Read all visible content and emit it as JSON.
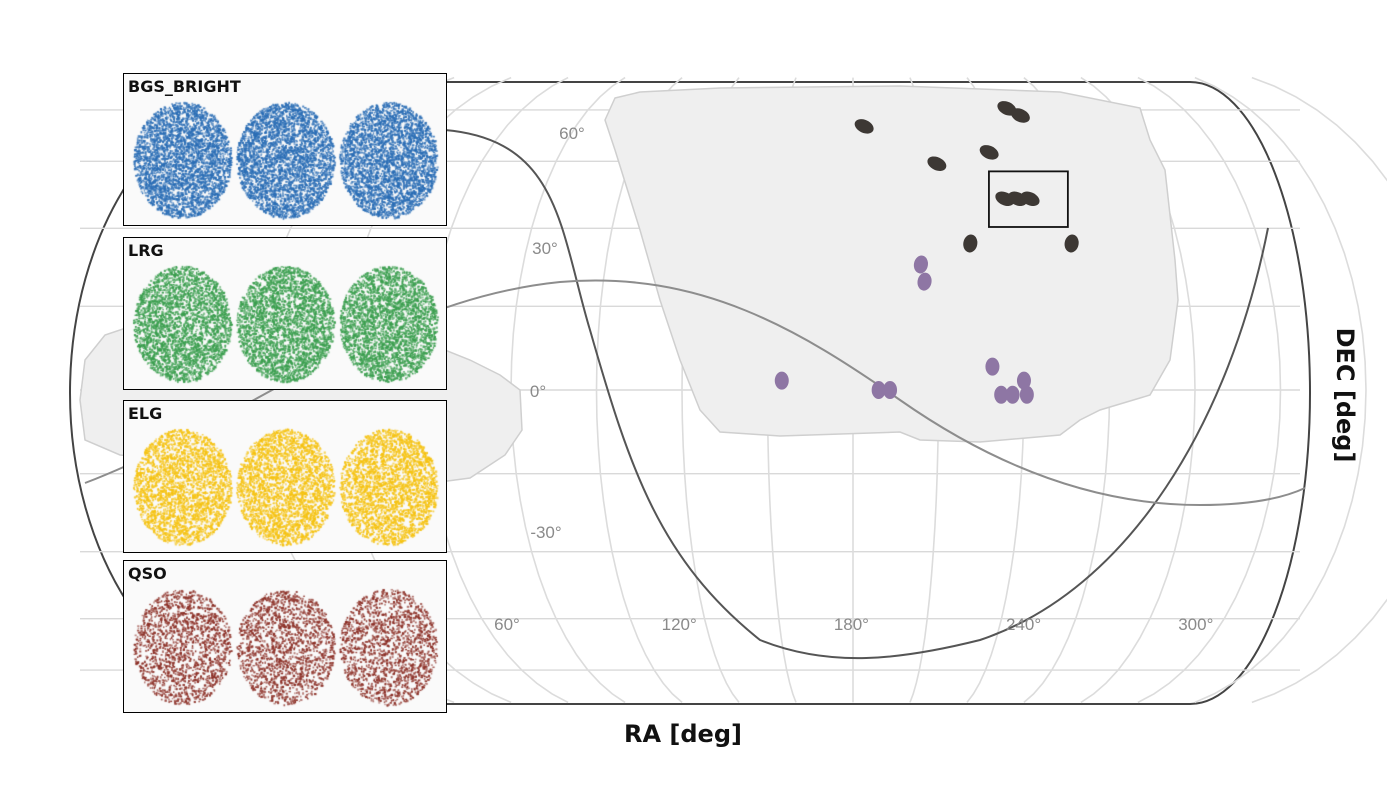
{
  "chart_data": {
    "type": "scatter",
    "projection": "equal-area sky map",
    "xlabel": "RA [deg]",
    "ylabel": "DEC [deg]",
    "ra_ticks": [
      {
        "value": 60,
        "label": "60°"
      },
      {
        "value": 120,
        "label": "120°"
      },
      {
        "value": 180,
        "label": "180°"
      },
      {
        "value": 240,
        "label": "240°"
      },
      {
        "value": 300,
        "label": "300°"
      }
    ],
    "dec_ticks": [
      {
        "value": 60,
        "label": "60°"
      },
      {
        "value": 30,
        "label": "30°"
      },
      {
        "value": 0,
        "label": "0°"
      },
      {
        "value": -30,
        "label": "-30°"
      }
    ],
    "grid": true,
    "footprint": "light grey survey footprint (north cap and equatorial stripe)",
    "curves": [
      "galactic plane",
      "ecliptic"
    ],
    "series": [
      {
        "color": "#3d3834",
        "points": [
          {
            "ra": 185,
            "dec": 63
          },
          {
            "ra": 215,
            "dec": 53
          },
          {
            "ra": 238,
            "dec": 56
          },
          {
            "ra": 252,
            "dec": 68
          },
          {
            "ra": 257,
            "dec": 66
          },
          {
            "ra": 240,
            "dec": 44
          },
          {
            "ra": 245,
            "dec": 44
          },
          {
            "ra": 250,
            "dec": 44
          },
          {
            "ra": 224,
            "dec": 33
          },
          {
            "ra": 262,
            "dec": 33
          }
        ]
      },
      {
        "color": "#8e76a4",
        "points": [
          {
            "ra": 205,
            "dec": 28
          },
          {
            "ra": 206,
            "dec": 24
          },
          {
            "ra": 155,
            "dec": 2
          },
          {
            "ra": 189,
            "dec": 0
          },
          {
            "ra": 193,
            "dec": 0
          },
          {
            "ra": 229,
            "dec": 5
          },
          {
            "ra": 232,
            "dec": -1
          },
          {
            "ra": 236,
            "dec": -1
          },
          {
            "ra": 240,
            "dec": 2
          },
          {
            "ra": 241,
            "dec": -1
          }
        ]
      }
    ],
    "highlight_box": {
      "ra_min": 236,
      "ra_max": 262,
      "dec_min": 37,
      "dec_max": 51
    }
  },
  "panels": [
    {
      "label": "BGS_BRIGHT",
      "color": "#2a6db5",
      "density": 0.62
    },
    {
      "label": "LRG",
      "color": "#3a9e4e",
      "density": 0.55
    },
    {
      "label": "ELG",
      "color": "#f5c211",
      "density": 0.5
    },
    {
      "label": "QSO",
      "color": "#8b2e25",
      "density": 0.3
    }
  ]
}
